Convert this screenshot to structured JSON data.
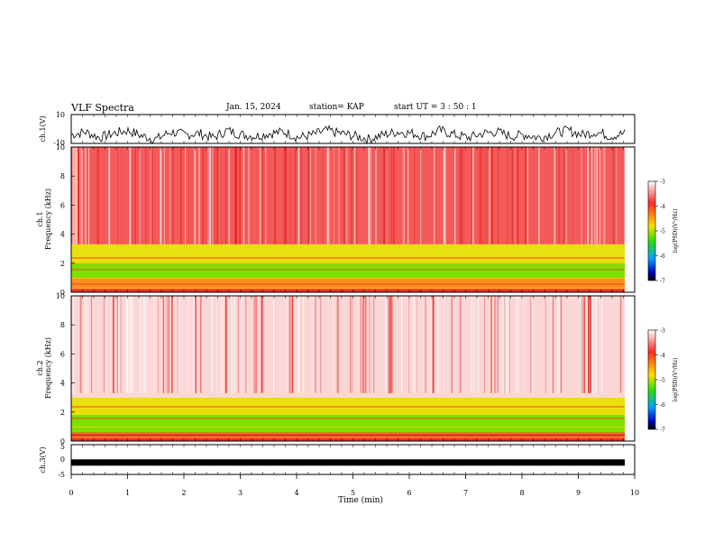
{
  "header": {
    "title": "VLF Spectra",
    "date": "Jan. 15, 2024",
    "station": "station= KAP",
    "start": "start  UT =  3 : 50 : 1"
  },
  "colorbar": {
    "label": "log(PSD)(V²/Hz)",
    "ticks": [
      "-3",
      "-4",
      "-5",
      "-6",
      "-7"
    ],
    "colors": [
      "#ffffff",
      "#ff3030",
      "#ffdd00",
      "#30e000",
      "#00a0ff",
      "#0000c0",
      "#000000"
    ]
  },
  "chart_data": [
    {
      "type": "line",
      "title": "",
      "ylabel": "ch.1(V)",
      "ylim": [
        -10,
        10
      ],
      "yticks": [
        "10",
        "-10"
      ],
      "xlim": [
        0,
        10
      ],
      "series": [
        {
          "values": [
            -4,
            -2,
            -6,
            -3,
            -1,
            -5,
            -7,
            -2,
            -4,
            -3,
            -6,
            -1,
            -4,
            -5,
            -3,
            -2,
            -6,
            -4,
            -1,
            -3,
            -5,
            -7,
            -4,
            -2,
            -3,
            -5,
            -1,
            -4,
            -6,
            -3,
            -2,
            -5,
            -4,
            -6,
            -3,
            -1,
            -4,
            -2,
            -5,
            -3
          ]
        }
      ]
    },
    {
      "type": "heatmap",
      "title": "",
      "ylabel": "ch.1\nFrequency (kHz)",
      "ylim": [
        0,
        10
      ],
      "yticks": [
        "0",
        "2",
        "4",
        "6",
        "8",
        "10"
      ],
      "xlim": [
        0,
        10
      ],
      "bands_khz": [
        {
          "range": [
            0,
            0.3
          ],
          "level": "red"
        },
        {
          "range": [
            0.3,
            1.0
          ],
          "level": "yellow-red"
        },
        {
          "range": [
            1.0,
            2.0
          ],
          "level": "green"
        },
        {
          "range": [
            2.0,
            3.3
          ],
          "level": "yellow"
        },
        {
          "range": [
            3.3,
            10
          ],
          "level": "red-white"
        }
      ]
    },
    {
      "type": "heatmap",
      "title": "",
      "ylabel": "ch.2\nFrequency (kHz)",
      "ylim": [
        0,
        10
      ],
      "yticks": [
        "0",
        "2",
        "4",
        "6",
        "8",
        "10"
      ],
      "xlim": [
        0,
        10
      ],
      "bands_khz": [
        {
          "range": [
            0,
            0.5
          ],
          "level": "red"
        },
        {
          "range": [
            0.5,
            1.8
          ],
          "level": "green"
        },
        {
          "range": [
            1.8,
            3.0
          ],
          "level": "yellow"
        },
        {
          "range": [
            3.0,
            10
          ],
          "level": "white-red"
        }
      ]
    },
    {
      "type": "line",
      "title": "",
      "ylabel": "ch.3(V)",
      "ylim": [
        -5,
        5
      ],
      "yticks": [
        "5",
        "0",
        "-5"
      ],
      "xlim": [
        0,
        10
      ],
      "xlabel": "Time (min)",
      "xticks": [
        "0",
        "1",
        "2",
        "3",
        "4",
        "5",
        "6",
        "7",
        "8",
        "9",
        "10"
      ],
      "series": [
        {
          "values": [
            -1,
            -1.2,
            -0.8,
            -1,
            -1.1,
            -0.9,
            -1,
            -1.2,
            -0.8,
            -1,
            -1.1,
            -0.9,
            -1,
            -1.2,
            -0.8,
            -1,
            -1.1,
            -0.9,
            -1,
            -1
          ]
        }
      ]
    }
  ]
}
